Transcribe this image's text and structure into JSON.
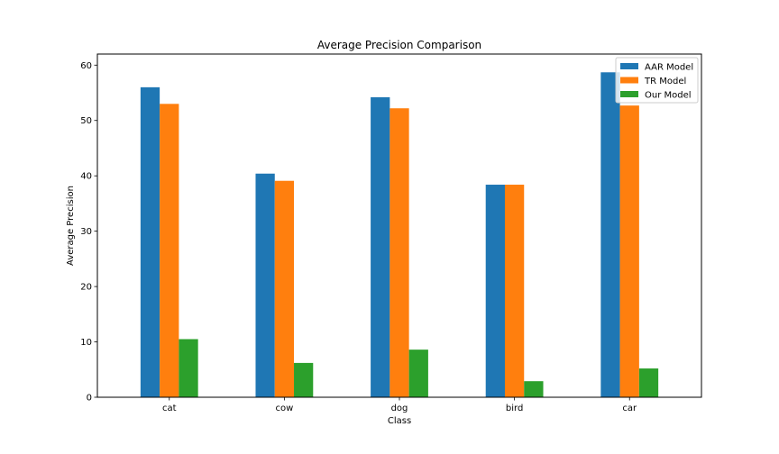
{
  "chart_data": {
    "type": "bar",
    "title": "Average Precision Comparison",
    "xlabel": "Class",
    "ylabel": "Average Precision",
    "categories": [
      "cat",
      "cow",
      "dog",
      "bird",
      "car"
    ],
    "series": [
      {
        "name": "AAR Model",
        "color": "#1f77b4",
        "values": [
          56.0,
          40.4,
          54.2,
          38.4,
          58.7
        ]
      },
      {
        "name": "TR Model",
        "color": "#ff7f0e",
        "values": [
          53.0,
          39.1,
          52.2,
          38.4,
          52.7
        ]
      },
      {
        "name": "Our Model",
        "color": "#2ca02c",
        "values": [
          10.5,
          6.2,
          8.6,
          2.9,
          5.2
        ]
      }
    ],
    "ylim": [
      0,
      62
    ],
    "yticks": [
      0,
      10,
      20,
      30,
      40,
      50,
      60
    ],
    "grid": false,
    "legend_position": "top-right"
  }
}
